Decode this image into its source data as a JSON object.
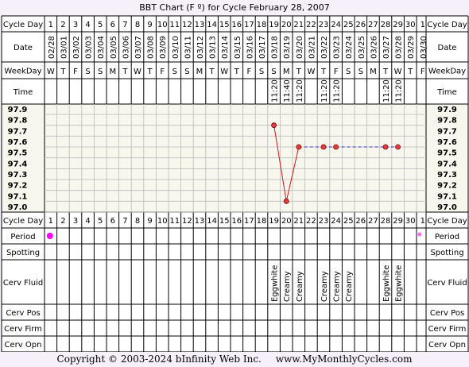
{
  "title": "BBT Chart (F º) for Cycle February 28, 2007",
  "copyright": "Copyright © 2003-2024 bInfinity Web Inc.",
  "site": "www.MyMonthlyCycles.com",
  "row_labels": {
    "cycle_day": "Cycle Day",
    "date": "Date",
    "weekday": "WeekDay",
    "time": "Time",
    "period": "Period",
    "spotting": "Spotting",
    "cerv_fluid": "Cerv Fluid",
    "cerv_pos": "Cerv Pos",
    "cerv_firm": "Cerv Firm",
    "cerv_opn": "Cerv Opn"
  },
  "columns": {
    "cycle_days": [
      "1",
      "2",
      "3",
      "4",
      "5",
      "6",
      "7",
      "8",
      "9",
      "10",
      "11",
      "12",
      "13",
      "14",
      "15",
      "16",
      "17",
      "18",
      "19",
      "20",
      "21",
      "22",
      "23",
      "24",
      "25",
      "26",
      "27",
      "28",
      "29",
      "30",
      "1"
    ],
    "dates": [
      "02/28",
      "03/01",
      "03/02",
      "03/03",
      "03/04",
      "03/05",
      "03/06",
      "03/07",
      "03/08",
      "03/09",
      "03/10",
      "03/11",
      "03/12",
      "03/13",
      "03/14",
      "03/15",
      "03/16",
      "03/17",
      "03/18",
      "03/19",
      "03/20",
      "03/21",
      "03/22",
      "03/23",
      "03/24",
      "03/25",
      "03/26",
      "03/27",
      "03/28",
      "03/29",
      "03/30"
    ],
    "weekdays": [
      "W",
      "T",
      "F",
      "S",
      "S",
      "M",
      "T",
      "W",
      "T",
      "F",
      "S",
      "S",
      "M",
      "T",
      "W",
      "T",
      "F",
      "S",
      "S",
      "M",
      "T",
      "W",
      "T",
      "F",
      "S",
      "S",
      "M",
      "T",
      "W",
      "T",
      "F"
    ],
    "times": [
      "",
      "",
      "",
      "",
      "",
      "",
      "",
      "",
      "",
      "",
      "",
      "",
      "",
      "",
      "",
      "",
      "",
      "",
      "11:20",
      "11:40",
      "11:20",
      "",
      "11:20",
      "11:20",
      "",
      "",
      "",
      "11:20",
      "11:20",
      "",
      ""
    ],
    "period": [
      "heavy",
      "",
      "",
      "",
      "",
      "",
      "",
      "",
      "",
      "",
      "",
      "",
      "",
      "",
      "",
      "",
      "",
      "",
      "",
      "",
      "",
      "",
      "",
      "",
      "",
      "",
      "",
      "",
      "",
      "",
      "light"
    ],
    "spotting": [
      "",
      "",
      "",
      "",
      "",
      "",
      "",
      "",
      "",
      "",
      "",
      "",
      "",
      "",
      "",
      "",
      "",
      "",
      "",
      "",
      "",
      "",
      "",
      "",
      "",
      "",
      "",
      "",
      "",
      "",
      ""
    ],
    "cerv_fluid": [
      "",
      "",
      "",
      "",
      "",
      "",
      "",
      "",
      "",
      "",
      "",
      "",
      "",
      "",
      "",
      "",
      "",
      "",
      "Eggwhite",
      "Creamy",
      "Creamy",
      "",
      "Creamy",
      "Creamy",
      "Creamy",
      "",
      "",
      "Eggwhite",
      "Eggwhite",
      "",
      ""
    ]
  },
  "chart_data": {
    "type": "line",
    "title": "BBT Chart (F º) for Cycle February 28, 2007",
    "xlabel": "Cycle Day",
    "ylabel": "",
    "ylim": [
      97.0,
      97.9
    ],
    "y_ticks": [
      "97.9",
      "97.8",
      "97.7",
      "97.6",
      "97.5",
      "97.4",
      "97.3",
      "97.2",
      "97.1",
      "97.0"
    ],
    "x": [
      19,
      20,
      21,
      23,
      24,
      28,
      29
    ],
    "values": [
      97.8,
      97.1,
      97.6,
      97.6,
      97.6,
      97.6,
      97.6
    ],
    "dashed_after_index": 2,
    "grid": true
  },
  "colors": {
    "background": "#f5f0fa",
    "plot_area": "#f7f7ee",
    "line": "#e01010",
    "dashed_line": "#3333cc",
    "marker_fill": "#e04040",
    "period_heavy": "#ff00ff",
    "period_light": "#ff66ff",
    "grid_line": "#bbbbbb"
  }
}
